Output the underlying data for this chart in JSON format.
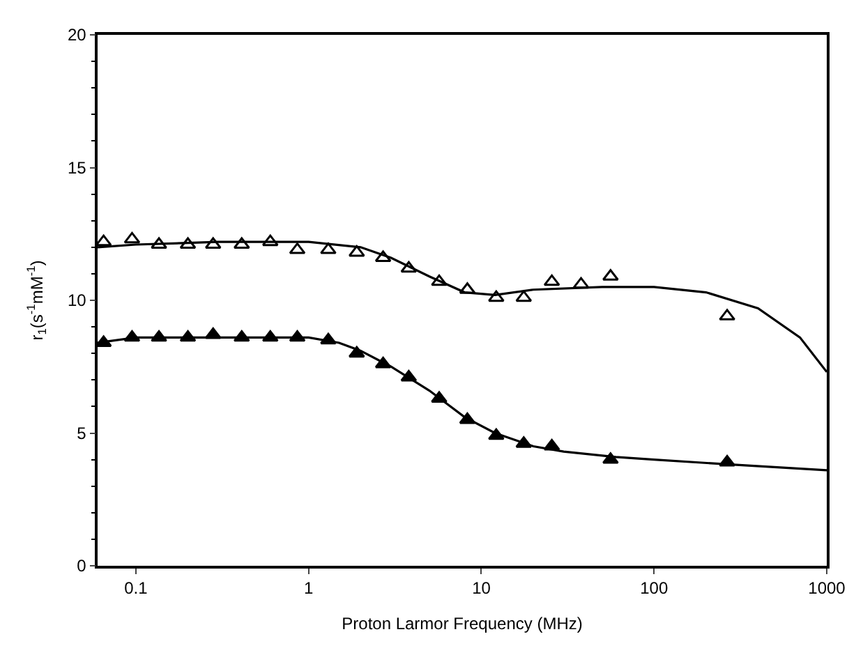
{
  "chart_data": {
    "type": "scatter",
    "xlabel": "Proton Larmor Frequency (MHz)",
    "ylabel": "r$_{1}$(s$^{-1}$mM$^{-1}$)",
    "log": "x",
    "xlim": [
      0.06,
      1000
    ],
    "xticks": [
      0.1,
      1,
      10,
      100,
      1000
    ],
    "ylim": [
      0,
      20
    ],
    "yticks": [
      0,
      5,
      10,
      15,
      20
    ],
    "series": [
      {
        "marker": "triangle",
        "color": "#ffffff",
        "x": [
          0.065,
          0.095,
          0.136,
          0.2,
          0.28,
          0.41,
          0.6,
          0.86,
          1.3,
          1.9,
          2.7,
          3.8,
          5.7,
          8.3,
          12.2,
          17.6,
          25.6,
          37.8,
          56,
          265
        ],
        "values": [
          12.2,
          12.3,
          12.1,
          12.1,
          12.1,
          12.1,
          12.2,
          11.9,
          11.9,
          11.8,
          11.6,
          11.2,
          10.7,
          10.4,
          10.1,
          10.1,
          10.7,
          10.6,
          10.9,
          9.4
        ]
      },
      {
        "marker": "triangle",
        "color": "#000000",
        "x": [
          0.065,
          0.095,
          0.136,
          0.2,
          0.28,
          0.41,
          0.6,
          0.86,
          1.3,
          1.9,
          2.7,
          3.8,
          5.7,
          8.3,
          12.2,
          17.6,
          25.6,
          56,
          265
        ],
        "values": [
          8.4,
          8.6,
          8.6,
          8.6,
          8.7,
          8.6,
          8.6,
          8.6,
          8.5,
          8.0,
          7.6,
          7.1,
          6.3,
          5.5,
          4.9,
          4.6,
          4.5,
          4.0,
          3.9
        ]
      },
      {
        "type": "line",
        "marker": "none",
        "line_style": "solid",
        "color": "#000000",
        "x": [
          0.06,
          0.1,
          0.3,
          1,
          2,
          3,
          5,
          8,
          12,
          20,
          50,
          100,
          200,
          400,
          700,
          1000
        ],
        "values": [
          12.0,
          12.1,
          12.2,
          12.2,
          12.0,
          11.6,
          10.9,
          10.3,
          10.2,
          10.4,
          10.5,
          10.5,
          10.3,
          9.7,
          8.6,
          7.3
        ]
      },
      {
        "type": "line",
        "marker": "none",
        "line_style": "solid",
        "color": "#000000",
        "x": [
          0.06,
          0.1,
          0.3,
          1,
          1.5,
          2,
          3,
          5,
          8,
          12,
          20,
          30,
          60,
          100,
          300,
          1000
        ],
        "values": [
          8.4,
          8.6,
          8.6,
          8.6,
          8.4,
          8.1,
          7.5,
          6.6,
          5.6,
          5.0,
          4.5,
          4.3,
          4.1,
          4.0,
          3.8,
          3.6
        ]
      }
    ]
  }
}
